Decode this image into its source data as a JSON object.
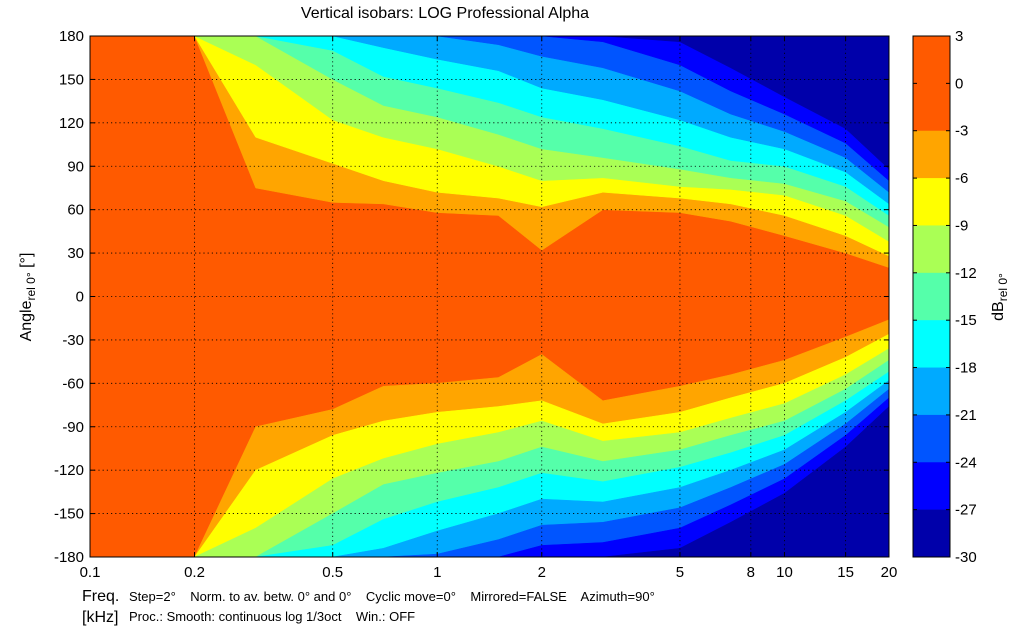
{
  "chart_data": {
    "type": "heatmap",
    "title": "Vertical isobars: LOG Professional  Alpha",
    "xlabel": "Freq.",
    "xunit_label": "[kHz]",
    "ylabel_main": "Angle",
    "ylabel_sub": "rel 0°",
    "ylabel_unit": " [°]",
    "colorbar_label_main": "dB",
    "colorbar_label_sub": "rel 0°",
    "x_scale": "log",
    "xlim": [
      0.1,
      20
    ],
    "ylim": [
      -180,
      180
    ],
    "grid": true,
    "x_ticks": [
      0.1,
      0.2,
      0.5,
      1,
      2,
      5,
      8,
      10,
      15,
      20
    ],
    "x_tick_labels": [
      "0.1",
      "0.2",
      "0.5",
      "1",
      "2",
      "5",
      "8",
      "10",
      "15",
      "20"
    ],
    "y_ticks": [
      180,
      150,
      120,
      90,
      60,
      30,
      0,
      -30,
      -60,
      -90,
      -120,
      -150,
      -180
    ],
    "y_tick_labels": [
      "180",
      "150",
      "120",
      "90",
      "60",
      "30",
      "0",
      "-30",
      "-60",
      "-90",
      "-120",
      "-150",
      "-180"
    ],
    "levels": [
      3,
      0,
      -3,
      -6,
      -9,
      -12,
      -15,
      -18,
      -21,
      -24,
      -27,
      -30
    ],
    "level_labels": [
      "3",
      "0",
      "-3",
      "-6",
      "-9",
      "-12",
      "-15",
      "-18",
      "-21",
      "-24",
      "-27",
      "-30"
    ],
    "band_colors": [
      "#ff5a00",
      "#ff5a00",
      "#ffa500",
      "#ffff00",
      "#aaff55",
      "#55ffaa",
      "#00ffff",
      "#00aaff",
      "#0055ff",
      "#0000ff",
      "#0000aa"
    ],
    "band_ranges": [
      [
        0,
        3
      ],
      [
        -3,
        0
      ],
      [
        -6,
        -3
      ],
      [
        -9,
        -6
      ],
      [
        -12,
        -9
      ],
      [
        -15,
        -12
      ],
      [
        -18,
        -15
      ],
      [
        -21,
        -18
      ],
      [
        -24,
        -21
      ],
      [
        -27,
        -24
      ],
      [
        -30,
        -27
      ]
    ],
    "contour_bounds_upper": {
      "freq_khz": [
        0.1,
        0.2,
        0.3,
        0.5,
        0.7,
        1,
        1.5,
        2,
        3,
        5,
        7,
        10,
        15,
        20
      ],
      "minus3": [
        180,
        180,
        75,
        65,
        64,
        58,
        56,
        32,
        60,
        58,
        52,
        42,
        30,
        20
      ],
      "minus6": [
        180,
        180,
        110,
        92,
        80,
        72,
        68,
        62,
        72,
        68,
        64,
        56,
        42,
        28
      ],
      "minus9": [
        180,
        180,
        160,
        122,
        110,
        102,
        90,
        80,
        82,
        76,
        74,
        70,
        56,
        38
      ],
      "minus12": [
        180,
        180,
        180,
        150,
        132,
        124,
        112,
        102,
        96,
        88,
        82,
        78,
        66,
        48
      ],
      "minus15": [
        180,
        180,
        180,
        170,
        152,
        144,
        134,
        124,
        116,
        104,
        94,
        90,
        76,
        56
      ],
      "minus18": [
        180,
        180,
        180,
        180,
        172,
        164,
        156,
        144,
        136,
        122,
        110,
        102,
        86,
        64
      ],
      "minus21": [
        180,
        180,
        180,
        180,
        180,
        180,
        174,
        166,
        158,
        142,
        126,
        114,
        96,
        72
      ],
      "minus24": [
        180,
        180,
        180,
        180,
        180,
        180,
        180,
        180,
        176,
        160,
        142,
        126,
        106,
        80
      ],
      "minus27": [
        180,
        180,
        180,
        180,
        180,
        180,
        180,
        180,
        180,
        176,
        158,
        138,
        116,
        88
      ]
    },
    "contour_bounds_lower": {
      "freq_khz": [
        0.1,
        0.2,
        0.3,
        0.5,
        0.7,
        1,
        1.5,
        2,
        3,
        5,
        7,
        10,
        15,
        20
      ],
      "minus3": [
        -180,
        -180,
        -90,
        -78,
        -62,
        -60,
        -56,
        -40,
        -72,
        -62,
        -54,
        -44,
        -28,
        -16
      ],
      "minus6": [
        -180,
        -180,
        -120,
        -96,
        -86,
        -80,
        -76,
        -72,
        -88,
        -80,
        -70,
        -60,
        -42,
        -26
      ],
      "minus9": [
        -180,
        -180,
        -160,
        -126,
        -112,
        -102,
        -94,
        -86,
        -100,
        -94,
        -84,
        -74,
        -54,
        -36
      ],
      "minus12": [
        -180,
        -180,
        -180,
        -150,
        -130,
        -122,
        -114,
        -104,
        -114,
        -106,
        -96,
        -86,
        -64,
        -44
      ],
      "minus15": [
        -180,
        -180,
        -180,
        -172,
        -154,
        -142,
        -132,
        -122,
        -128,
        -118,
        -108,
        -96,
        -72,
        -52
      ],
      "minus18": [
        -180,
        -180,
        -180,
        -180,
        -174,
        -162,
        -150,
        -140,
        -142,
        -132,
        -120,
        -106,
        -80,
        -58
      ],
      "minus21": [
        -180,
        -180,
        -180,
        -180,
        -180,
        -178,
        -168,
        -158,
        -156,
        -146,
        -132,
        -116,
        -88,
        -64
      ],
      "minus24": [
        -180,
        -180,
        -180,
        -180,
        -180,
        -180,
        -180,
        -172,
        -170,
        -160,
        -144,
        -126,
        -96,
        -70
      ],
      "minus27": [
        -180,
        -180,
        -180,
        -180,
        -180,
        -180,
        -180,
        -180,
        -180,
        -174,
        -156,
        -136,
        -104,
        -76
      ]
    }
  },
  "footer": {
    "freq_label": "Freq.",
    "unit_label": "[kHz]",
    "line1": "Step=2°    Norm. to av. betw. 0° and 0°    Cyclic move=0°    Mirrored=FALSE    Azimuth=90°",
    "line2": "Proc.: Smooth: continuous log 1/3oct    Win.: OFF"
  }
}
